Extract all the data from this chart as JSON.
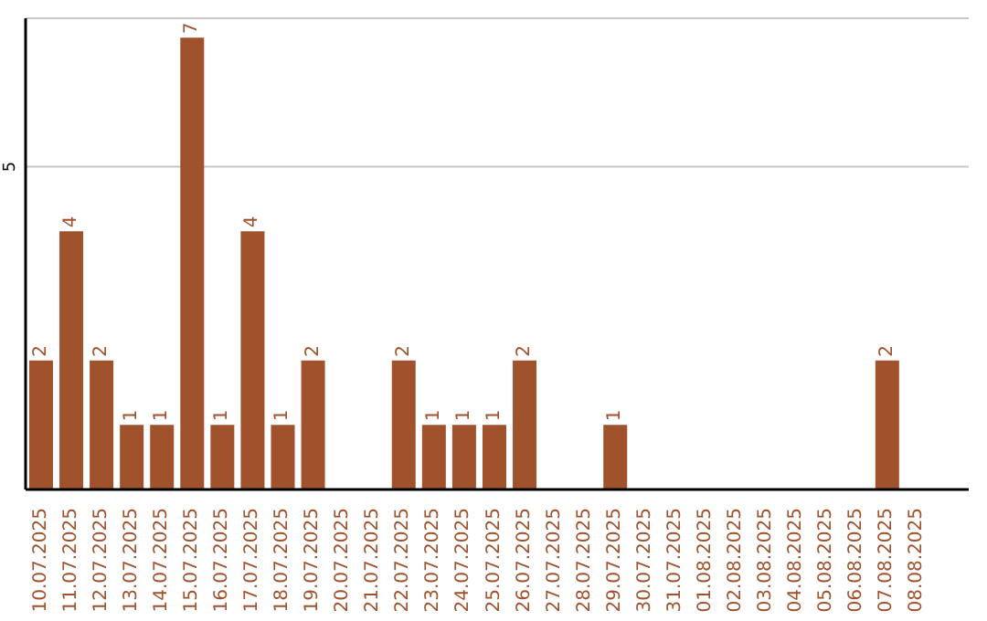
{
  "chart_data": {
    "type": "bar",
    "categories": [
      "10.07.2025",
      "11.07.2025",
      "12.07.2025",
      "13.07.2025",
      "14.07.2025",
      "15.07.2025",
      "16.07.2025",
      "17.07.2025",
      "18.07.2025",
      "19.07.2025",
      "20.07.2025",
      "21.07.2025",
      "22.07.2025",
      "23.07.2025",
      "24.07.2025",
      "25.07.2025",
      "26.07.2025",
      "27.07.2025",
      "28.07.2025",
      "29.07.2025",
      "30.07.2025",
      "31.07.2025",
      "01.08.2025",
      "02.08.2025",
      "03.08.2025",
      "04.08.2025",
      "05.08.2025",
      "06.08.2025",
      "07.08.2025",
      "08.08.2025"
    ],
    "values": [
      2,
      4,
      2,
      1,
      1,
      7,
      1,
      4,
      1,
      2,
      0,
      0,
      2,
      1,
      1,
      1,
      2,
      0,
      0,
      1,
      0,
      0,
      0,
      0,
      0,
      0,
      0,
      0,
      2,
      0
    ],
    "value_labels": [
      "2",
      "4",
      "2",
      "1",
      "1",
      "7",
      "1",
      "4",
      "1",
      "2",
      null,
      null,
      "2",
      "1",
      "1",
      "1",
      "2",
      null,
      null,
      "1",
      null,
      null,
      null,
      null,
      null,
      null,
      null,
      null,
      "2",
      null
    ],
    "color": "#a0522d",
    "ylim": [
      0,
      7.3
    ],
    "yticks": [
      5
    ],
    "grid": "y"
  }
}
